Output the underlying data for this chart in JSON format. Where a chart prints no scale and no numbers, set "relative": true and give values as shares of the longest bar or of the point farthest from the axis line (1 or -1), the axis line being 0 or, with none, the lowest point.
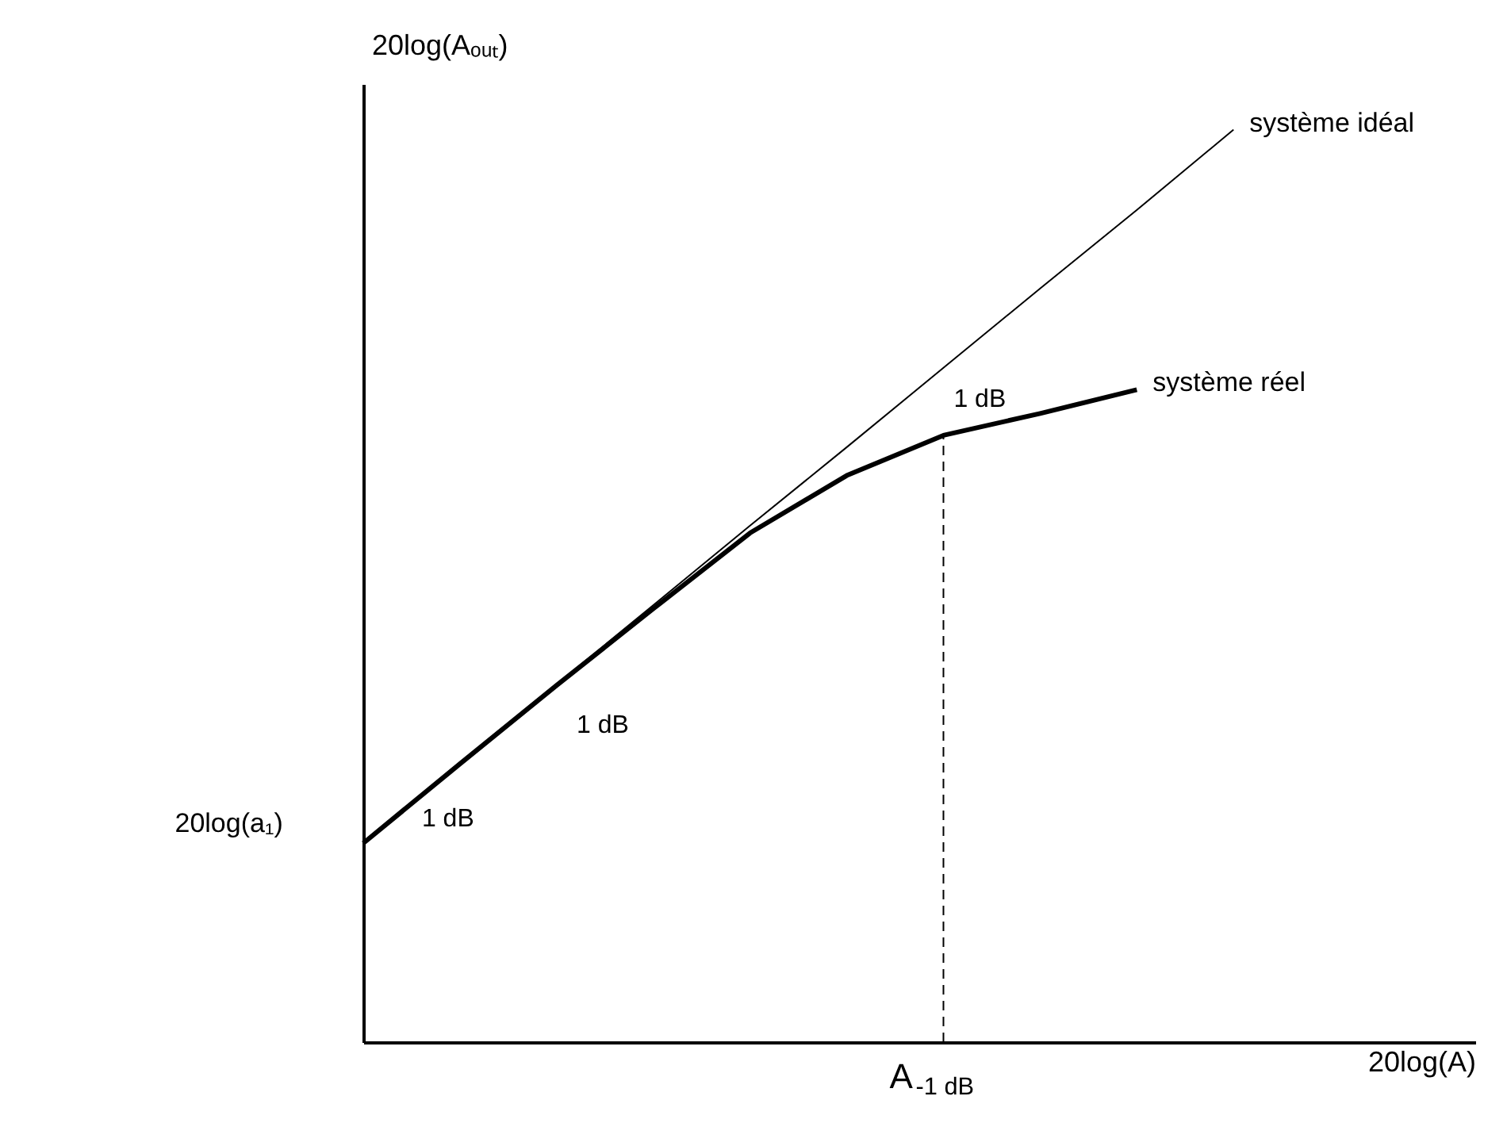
{
  "chart_data": {
    "type": "line",
    "relative": true,
    "xlabel": "20log(A)",
    "ylabel": "20log(Aₒᵤₜ)",
    "legend": false,
    "grid": false,
    "categories": [
      null,
      null,
      null,
      null,
      null,
      null,
      null,
      null,
      null,
      null
    ],
    "series": [
      {
        "name": "système idéal",
        "color": "#000000",
        "values": [
          0.218,
          0.305,
          0.392,
          0.479,
          0.566,
          0.652,
          0.739,
          0.826,
          0.912,
          1.0
        ]
      },
      {
        "name": "système réel",
        "color": "#000000",
        "values": [
          0.218,
          0.305,
          0.391,
          0.475,
          0.558,
          0.621,
          0.665,
          0.689,
          0.715,
          null
        ]
      }
    ],
    "annotations": [
      "20log(a₁)",
      "A$_{-1 dB}$",
      "1 dB",
      "1 dB",
      "1 dB"
    ]
  }
}
